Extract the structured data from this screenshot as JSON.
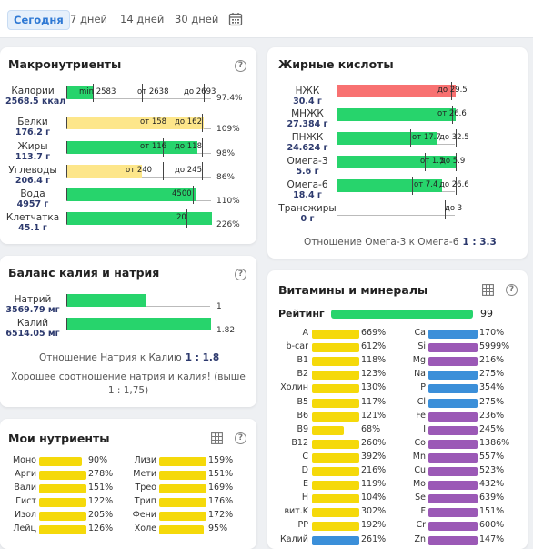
{
  "tabs": {
    "today": "Сегодня",
    "d7": "7 дней",
    "d14": "14 дней",
    "d30": "30 дней"
  },
  "macro": {
    "title": "Макронутриенты",
    "rows": [
      {
        "name": "Калории",
        "value": "2568.5 ккал",
        "m1": "min 2583",
        "m2": "от 2638",
        "m3": "до 2693",
        "pct": "97.4%"
      },
      {
        "name": "Белки",
        "value": "176.2 г",
        "m1": "от 158",
        "m2": "до 162",
        "pct": "109%"
      },
      {
        "name": "Жиры",
        "value": "113.7 г",
        "m1": "от 116",
        "m2": "до 118",
        "pct": "98%"
      },
      {
        "name": "Углеводы",
        "value": "206.4 г",
        "m1": "от 240",
        "m2": "до 245",
        "pct": "86%"
      },
      {
        "name": "Вода",
        "value": "4957 г",
        "m1": "4500",
        "pct": "110%"
      },
      {
        "name": "Клетчатка",
        "value": "45.1 г",
        "m1": "20",
        "pct": "226%"
      }
    ]
  },
  "fats": {
    "title": "Жирные кислоты",
    "rows": [
      {
        "name": "НЖК",
        "value": "30.4 г",
        "m1": "до 29.5"
      },
      {
        "name": "МНЖК",
        "value": "27.384 г",
        "m1": "от 26.6"
      },
      {
        "name": "ПНЖК",
        "value": "24.624 г",
        "m1": "от 17.7",
        "m2": "до 32.5"
      },
      {
        "name": "Омега-3",
        "value": "5.6 г",
        "m1": "от 1.5",
        "m2": "до 5.9"
      },
      {
        "name": "Омега-6",
        "value": "18.4 г",
        "m1": "от 7.4",
        "m2": "до 26.6"
      },
      {
        "name": "Трансжиры",
        "value": "0 г",
        "m1": "до 3"
      }
    ],
    "ratio_label": "Отношение Омега-3 к Омега-6",
    "ratio_value": "1 : 3.3"
  },
  "potassium": {
    "title": "Баланс калия и натрия",
    "rows": [
      {
        "name": "Натрий",
        "value": "3569.79 мг",
        "ratio": "1"
      },
      {
        "name": "Калий",
        "value": "6514.05 мг",
        "ratio": "1.82"
      }
    ],
    "ratio_label": "Отношение Натрия к Калию",
    "ratio_value": "1 : 1.8",
    "note": "Хорошее соотношение натрия и калия! (выше 1 : 1,75)"
  },
  "my": {
    "title": "Мои нутриенты",
    "left": [
      {
        "n": "Моно",
        "p": "90%"
      },
      {
        "n": "Арги",
        "p": "278%"
      },
      {
        "n": "Вали",
        "p": "151%"
      },
      {
        "n": "Гист",
        "p": "122%"
      },
      {
        "n": "Изол",
        "p": "205%"
      },
      {
        "n": "Лейц",
        "p": "126%"
      }
    ],
    "right": [
      {
        "n": "Лизи",
        "p": "159%"
      },
      {
        "n": "Мети",
        "p": "151%"
      },
      {
        "n": "Трео",
        "p": "169%"
      },
      {
        "n": "Трип",
        "p": "176%"
      },
      {
        "n": "Фени",
        "p": "172%"
      },
      {
        "n": "Холе",
        "p": "95%"
      }
    ]
  },
  "vit": {
    "title": "Витамины и минералы",
    "rating_label": "Рейтинг",
    "rating_value": "99",
    "left": [
      {
        "n": "A",
        "p": "669%"
      },
      {
        "n": "b-car",
        "p": "612%"
      },
      {
        "n": "B1",
        "p": "118%"
      },
      {
        "n": "B2",
        "p": "123%"
      },
      {
        "n": "Холин",
        "p": "130%"
      },
      {
        "n": "B5",
        "p": "117%"
      },
      {
        "n": "B6",
        "p": "121%"
      },
      {
        "n": "B9",
        "p": "68%"
      },
      {
        "n": "B12",
        "p": "260%"
      },
      {
        "n": "C",
        "p": "392%"
      },
      {
        "n": "D",
        "p": "216%"
      },
      {
        "n": "E",
        "p": "119%"
      },
      {
        "n": "H",
        "p": "104%"
      },
      {
        "n": "вит.K",
        "p": "302%"
      },
      {
        "n": "PP",
        "p": "192%"
      },
      {
        "n": "Калий",
        "p": "261%"
      }
    ],
    "right": [
      {
        "n": "Ca",
        "p": "170%"
      },
      {
        "n": "Si",
        "p": "5999%"
      },
      {
        "n": "Mg",
        "p": "216%"
      },
      {
        "n": "Na",
        "p": "275%"
      },
      {
        "n": "P",
        "p": "354%"
      },
      {
        "n": "Cl",
        "p": "275%"
      },
      {
        "n": "Fe",
        "p": "236%"
      },
      {
        "n": "I",
        "p": "245%"
      },
      {
        "n": "Co",
        "p": "1386%"
      },
      {
        "n": "Mn",
        "p": "557%"
      },
      {
        "n": "Cu",
        "p": "523%"
      },
      {
        "n": "Mo",
        "p": "432%"
      },
      {
        "n": "Se",
        "p": "639%"
      },
      {
        "n": "F",
        "p": "151%"
      },
      {
        "n": "Cr",
        "p": "600%"
      },
      {
        "n": "Zn",
        "p": "147%"
      }
    ]
  },
  "colors": {
    "green": "#27d46c",
    "yellow": "#fde68a",
    "red": "#f87171",
    "bright_yellow": "#f5d90a",
    "blue": "#3b8fd9",
    "purple": "#9b59b6"
  }
}
